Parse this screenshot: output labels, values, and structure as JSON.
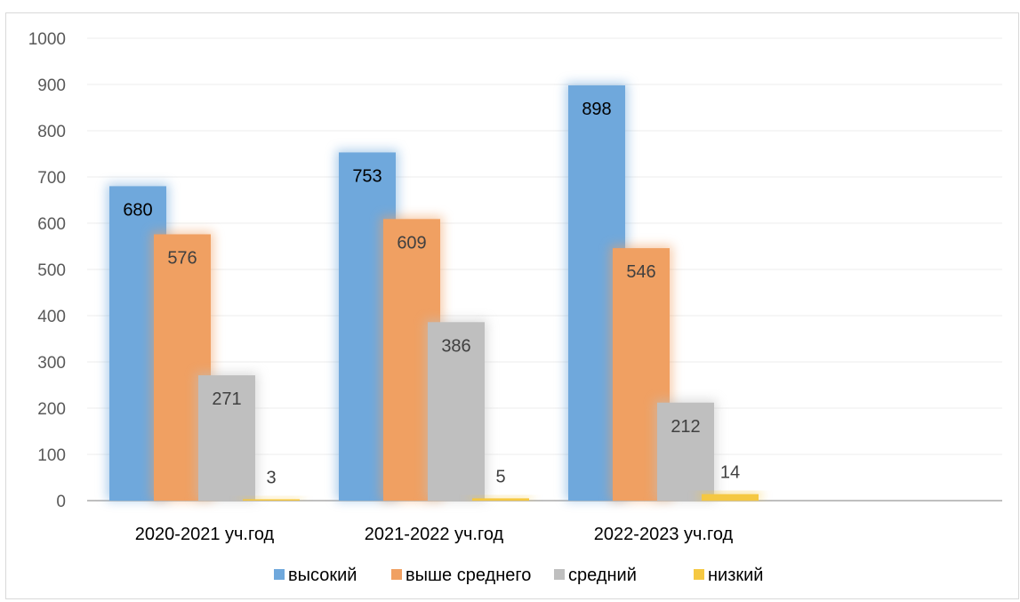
{
  "chart_data": {
    "type": "bar",
    "categories": [
      "2020-2021 уч.год",
      "2021-2022 уч.год",
      "2022-2023 уч.год"
    ],
    "series": [
      {
        "name": "высокий",
        "values": [
          680,
          753,
          898
        ],
        "color": "#6fa8dc"
      },
      {
        "name": "выше среднего",
        "values": [
          576,
          609,
          546
        ],
        "color": "#f0a062"
      },
      {
        "name": "средний",
        "values": [
          271,
          386,
          212
        ],
        "color": "#bfbfbf"
      },
      {
        "name": "низкий",
        "values": [
          3,
          5,
          14
        ],
        "color": "#f5c842"
      }
    ],
    "title": "",
    "xlabel": "",
    "ylabel": "",
    "ylim": [
      0,
      1000
    ],
    "yticks": [
      0,
      100,
      200,
      300,
      400,
      500,
      600,
      700,
      800,
      900,
      1000
    ],
    "grid": true,
    "legend": "bottom",
    "data_labels": true
  }
}
